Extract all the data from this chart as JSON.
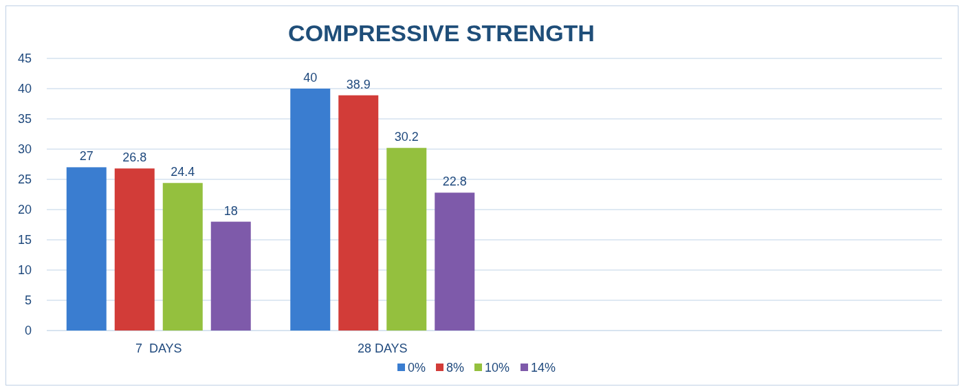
{
  "chart_data": {
    "type": "bar",
    "title": "COMPRESSIVE STRENGTH",
    "categories": [
      "7  DAYS",
      "28 DAYS",
      null,
      null
    ],
    "series": [
      {
        "name": "0%",
        "color": "#3a7dd0",
        "values": [
          27,
          40,
          null,
          null
        ]
      },
      {
        "name": "8%",
        "color": "#d23c38",
        "values": [
          26.8,
          38.9,
          null,
          null
        ]
      },
      {
        "name": "10%",
        "color": "#94c03e",
        "values": [
          24.4,
          30.2,
          null,
          null
        ]
      },
      {
        "name": "14%",
        "color": "#7e5aaa",
        "values": [
          18,
          22.8,
          null,
          null
        ]
      }
    ],
    "ylim": [
      0,
      45
    ],
    "yticks": [
      0,
      5,
      10,
      15,
      20,
      25,
      30,
      35,
      40,
      45
    ],
    "grid": "y",
    "legend": "bottom",
    "data_labels": true
  }
}
